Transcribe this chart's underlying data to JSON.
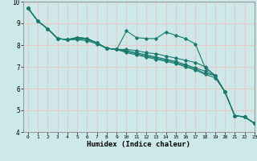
{
  "xlabel": "Humidex (Indice chaleur)",
  "ylabel": "",
  "xlim": [
    -0.5,
    23
  ],
  "ylim": [
    4,
    10
  ],
  "yticks": [
    4,
    5,
    6,
    7,
    8,
    9,
    10
  ],
  "xticks": [
    0,
    1,
    2,
    3,
    4,
    5,
    6,
    7,
    8,
    9,
    10,
    11,
    12,
    13,
    14,
    15,
    16,
    17,
    18,
    19,
    20,
    21,
    22,
    23
  ],
  "bg_color": "#cce8e8",
  "grid_color": "#e8c8c8",
  "line_color": "#1a7a6e",
  "lines": [
    [
      9.7,
      9.1,
      8.75,
      8.3,
      8.25,
      8.35,
      8.3,
      8.1,
      7.85,
      7.8,
      8.65,
      8.35,
      8.3,
      8.3,
      8.6,
      8.45,
      8.3,
      8.05,
      6.95,
      6.6,
      5.85,
      4.75,
      4.7,
      4.4
    ],
    [
      9.7,
      9.1,
      8.75,
      8.3,
      8.25,
      8.35,
      8.3,
      8.1,
      7.85,
      7.8,
      7.8,
      7.75,
      7.65,
      7.6,
      7.5,
      7.4,
      7.3,
      7.2,
      7.0,
      6.6,
      5.85,
      4.75,
      4.7,
      4.4
    ],
    [
      9.7,
      9.1,
      8.75,
      8.3,
      8.25,
      8.35,
      8.3,
      8.1,
      7.85,
      7.8,
      7.75,
      7.65,
      7.55,
      7.45,
      7.35,
      7.25,
      7.1,
      6.95,
      6.8,
      6.6,
      5.85,
      4.75,
      4.7,
      4.4
    ],
    [
      9.7,
      9.1,
      8.75,
      8.3,
      8.25,
      8.3,
      8.25,
      8.1,
      7.85,
      7.8,
      7.7,
      7.6,
      7.5,
      7.4,
      7.3,
      7.2,
      7.05,
      6.9,
      6.7,
      6.6,
      5.85,
      4.75,
      4.7,
      4.4
    ],
    [
      9.7,
      9.1,
      8.75,
      8.3,
      8.25,
      8.25,
      8.2,
      8.05,
      7.85,
      7.8,
      7.65,
      7.55,
      7.45,
      7.35,
      7.25,
      7.15,
      7.0,
      6.85,
      6.65,
      6.5,
      5.85,
      4.75,
      4.7,
      4.4
    ]
  ]
}
